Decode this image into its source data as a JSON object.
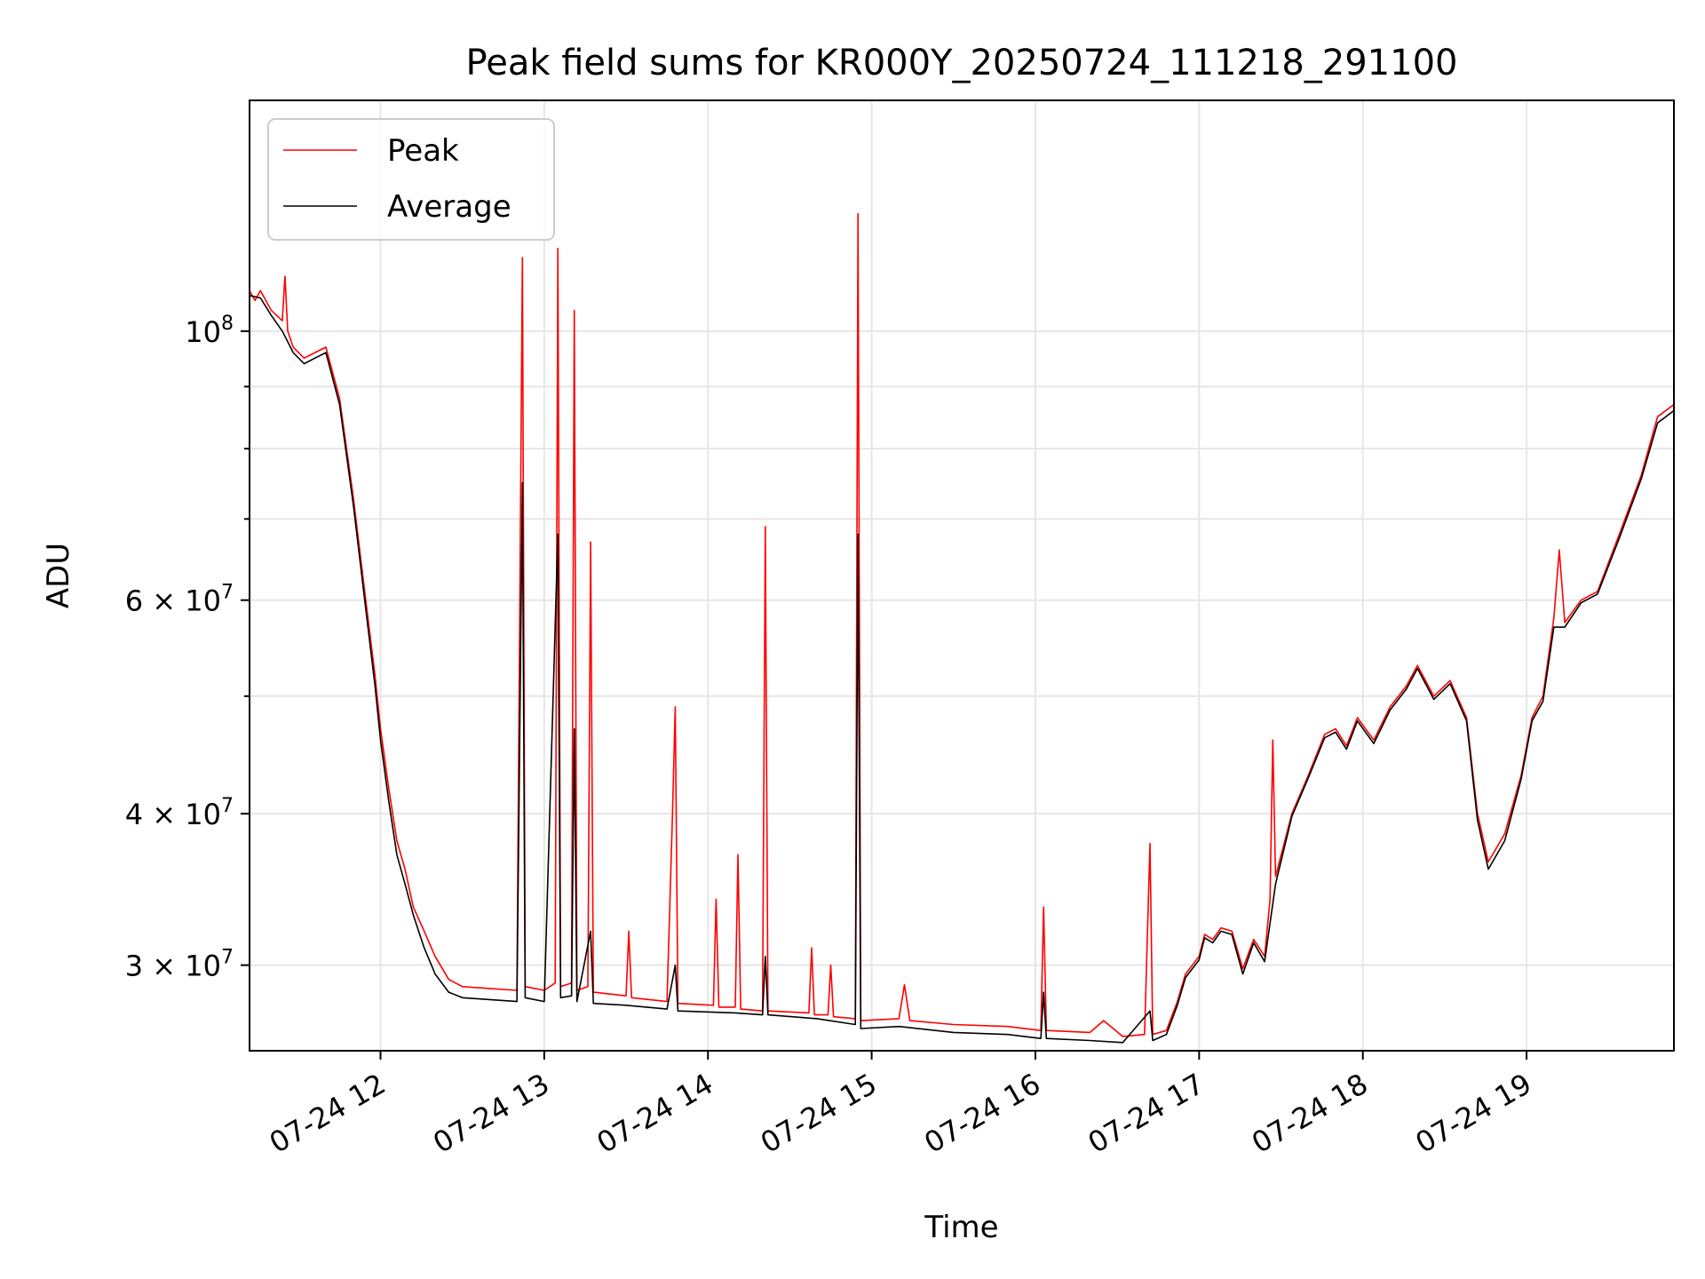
{
  "chart_data": {
    "type": "line",
    "title": "Peak field sums for KR000Y_20250724_111218_291100",
    "xlabel": "Time",
    "ylabel": "ADU",
    "yscale": "log",
    "xlim": [
      "2025-07-24 11:12",
      "2025-07-24 19:54"
    ],
    "ylim": [
      25500000,
      155000000
    ],
    "grid": true,
    "legend_position": "upper left",
    "x_ticks": [
      {
        "value": "2025-07-24 12:00",
        "label": "07-24 12"
      },
      {
        "value": "2025-07-24 13:00",
        "label": "07-24 13"
      },
      {
        "value": "2025-07-24 14:00",
        "label": "07-24 14"
      },
      {
        "value": "2025-07-24 15:00",
        "label": "07-24 15"
      },
      {
        "value": "2025-07-24 16:00",
        "label": "07-24 16"
      },
      {
        "value": "2025-07-24 17:00",
        "label": "07-24 17"
      },
      {
        "value": "2025-07-24 18:00",
        "label": "07-24 18"
      },
      {
        "value": "2025-07-24 19:00",
        "label": "07-24 19"
      }
    ],
    "y_ticks": [
      {
        "value": 30000000,
        "base": "3 × 10",
        "exp": "7"
      },
      {
        "value": 40000000,
        "base": "4 × 10",
        "exp": "7"
      },
      {
        "value": 60000000,
        "base": "6 × 10",
        "exp": "7"
      },
      {
        "value": 100000000,
        "base": "10",
        "exp": "8"
      }
    ],
    "y_minor_ticks": [
      50000000,
      70000000,
      80000000,
      90000000
    ],
    "series": [
      {
        "name": "Peak",
        "color": "#ff0000",
        "points": [
          [
            "2025-07-24 11:12",
            108000000
          ],
          [
            "2025-07-24 11:14",
            106000000
          ],
          [
            "2025-07-24 11:16",
            108000000
          ],
          [
            "2025-07-24 11:20",
            104000000
          ],
          [
            "2025-07-24 11:24",
            102000000
          ],
          [
            "2025-07-24 11:25",
            111000000
          ],
          [
            "2025-07-24 11:26",
            100000000
          ],
          [
            "2025-07-24 11:28",
            97000000
          ],
          [
            "2025-07-24 11:32",
            95000000
          ],
          [
            "2025-07-24 11:36",
            96000000
          ],
          [
            "2025-07-24 11:40",
            97000000
          ],
          [
            "2025-07-24 11:45",
            88000000
          ],
          [
            "2025-07-24 11:50",
            73000000
          ],
          [
            "2025-07-24 11:55",
            59000000
          ],
          [
            "2025-07-24 11:58",
            52000000
          ],
          [
            "2025-07-24 12:00",
            47000000
          ],
          [
            "2025-07-24 12:03",
            42000000
          ],
          [
            "2025-07-24 12:06",
            38000000
          ],
          [
            "2025-07-24 12:09",
            36000000
          ],
          [
            "2025-07-24 12:12",
            33500000
          ],
          [
            "2025-07-24 12:16",
            32000000
          ],
          [
            "2025-07-24 12:20",
            30500000
          ],
          [
            "2025-07-24 12:25",
            29200000
          ],
          [
            "2025-07-24 12:30",
            28800000
          ],
          [
            "2025-07-24 12:40",
            28700000
          ],
          [
            "2025-07-24 12:50",
            28600000
          ],
          [
            "2025-07-24 12:52",
            115000000
          ],
          [
            "2025-07-24 12:53",
            28800000
          ],
          [
            "2025-07-24 13:00",
            28600000
          ],
          [
            "2025-07-24 13:04",
            29000000
          ],
          [
            "2025-07-24 13:05",
            117000000
          ],
          [
            "2025-07-24 13:06",
            28800000
          ],
          [
            "2025-07-24 13:10",
            29000000
          ],
          [
            "2025-07-24 13:11",
            104000000
          ],
          [
            "2025-07-24 13:12",
            28600000
          ],
          [
            "2025-07-24 13:16",
            28800000
          ],
          [
            "2025-07-24 13:17",
            67000000
          ],
          [
            "2025-07-24 13:18",
            28500000
          ],
          [
            "2025-07-24 13:30",
            28300000
          ],
          [
            "2025-07-24 13:31",
            32000000
          ],
          [
            "2025-07-24 13:32",
            28200000
          ],
          [
            "2025-07-24 13:45",
            28000000
          ],
          [
            "2025-07-24 13:47",
            40000000
          ],
          [
            "2025-07-24 13:48",
            49000000
          ],
          [
            "2025-07-24 13:49",
            27900000
          ],
          [
            "2025-07-24 14:02",
            27800000
          ],
          [
            "2025-07-24 14:03",
            34000000
          ],
          [
            "2025-07-24 14:04",
            27700000
          ],
          [
            "2025-07-24 14:10",
            27700000
          ],
          [
            "2025-07-24 14:11",
            37000000
          ],
          [
            "2025-07-24 14:12",
            27600000
          ],
          [
            "2025-07-24 14:20",
            27500000
          ],
          [
            "2025-07-24 14:21",
            69000000
          ],
          [
            "2025-07-24 14:22",
            27500000
          ],
          [
            "2025-07-24 14:37",
            27400000
          ],
          [
            "2025-07-24 14:38",
            31000000
          ],
          [
            "2025-07-24 14:39",
            27300000
          ],
          [
            "2025-07-24 14:44",
            27300000
          ],
          [
            "2025-07-24 14:45",
            30000000
          ],
          [
            "2025-07-24 14:46",
            27200000
          ],
          [
            "2025-07-24 14:54",
            27100000
          ],
          [
            "2025-07-24 14:55",
            125000000
          ],
          [
            "2025-07-24 14:56",
            27000000
          ],
          [
            "2025-07-24 15:10",
            27100000
          ],
          [
            "2025-07-24 15:12",
            28900000
          ],
          [
            "2025-07-24 15:14",
            27000000
          ],
          [
            "2025-07-24 15:30",
            26800000
          ],
          [
            "2025-07-24 15:50",
            26700000
          ],
          [
            "2025-07-24 16:02",
            26500000
          ],
          [
            "2025-07-24 16:03",
            33500000
          ],
          [
            "2025-07-24 16:04",
            26500000
          ],
          [
            "2025-07-24 16:20",
            26400000
          ],
          [
            "2025-07-24 16:25",
            27000000
          ],
          [
            "2025-07-24 16:32",
            26200000
          ],
          [
            "2025-07-24 16:40",
            26300000
          ],
          [
            "2025-07-24 16:42",
            37800000
          ],
          [
            "2025-07-24 16:43",
            26300000
          ],
          [
            "2025-07-24 16:48",
            26500000
          ],
          [
            "2025-07-24 16:52",
            28000000
          ],
          [
            "2025-07-24 16:55",
            29500000
          ],
          [
            "2025-07-24 17:00",
            30500000
          ],
          [
            "2025-07-24 17:02",
            31800000
          ],
          [
            "2025-07-24 17:05",
            31500000
          ],
          [
            "2025-07-24 17:08",
            32200000
          ],
          [
            "2025-07-24 17:12",
            32000000
          ],
          [
            "2025-07-24 17:16",
            29800000
          ],
          [
            "2025-07-24 17:20",
            31500000
          ],
          [
            "2025-07-24 17:24",
            30500000
          ],
          [
            "2025-07-24 17:26",
            34000000
          ],
          [
            "2025-07-24 17:27",
            46000000
          ],
          [
            "2025-07-24 17:28",
            35500000
          ],
          [
            "2025-07-24 17:34",
            40000000
          ],
          [
            "2025-07-24 17:40",
            43000000
          ],
          [
            "2025-07-24 17:46",
            46500000
          ],
          [
            "2025-07-24 17:50",
            47000000
          ],
          [
            "2025-07-24 17:54",
            45500000
          ],
          [
            "2025-07-24 17:58",
            48000000
          ],
          [
            "2025-07-24 18:04",
            46000000
          ],
          [
            "2025-07-24 18:10",
            49000000
          ],
          [
            "2025-07-24 18:16",
            51000000
          ],
          [
            "2025-07-24 18:20",
            53000000
          ],
          [
            "2025-07-24 18:26",
            50000000
          ],
          [
            "2025-07-24 18:32",
            51500000
          ],
          [
            "2025-07-24 18:38",
            48000000
          ],
          [
            "2025-07-24 18:42",
            40000000
          ],
          [
            "2025-07-24 18:46",
            36500000
          ],
          [
            "2025-07-24 18:52",
            38500000
          ],
          [
            "2025-07-24 18:58",
            43000000
          ],
          [
            "2025-07-24 19:02",
            48000000
          ],
          [
            "2025-07-24 19:06",
            50000000
          ],
          [
            "2025-07-24 19:10",
            58000000
          ],
          [
            "2025-07-24 19:12",
            66000000
          ],
          [
            "2025-07-24 19:14",
            57500000
          ],
          [
            "2025-07-24 19:20",
            60000000
          ],
          [
            "2025-07-24 19:26",
            61000000
          ],
          [
            "2025-07-24 19:34",
            68000000
          ],
          [
            "2025-07-24 19:42",
            76000000
          ],
          [
            "2025-07-24 19:48",
            85000000
          ],
          [
            "2025-07-24 19:54",
            87000000
          ]
        ]
      },
      {
        "name": "Average",
        "color": "#000000",
        "points": [
          [
            "2025-07-24 11:12",
            107000000
          ],
          [
            "2025-07-24 11:16",
            106500000
          ],
          [
            "2025-07-24 11:20",
            103000000
          ],
          [
            "2025-07-24 11:24",
            100000000
          ],
          [
            "2025-07-24 11:28",
            96000000
          ],
          [
            "2025-07-24 11:32",
            94000000
          ],
          [
            "2025-07-24 11:36",
            95000000
          ],
          [
            "2025-07-24 11:40",
            96000000
          ],
          [
            "2025-07-24 11:45",
            87000000
          ],
          [
            "2025-07-24 11:50",
            72000000
          ],
          [
            "2025-07-24 11:55",
            58000000
          ],
          [
            "2025-07-24 11:58",
            51000000
          ],
          [
            "2025-07-24 12:00",
            46000000
          ],
          [
            "2025-07-24 12:03",
            41000000
          ],
          [
            "2025-07-24 12:06",
            37000000
          ],
          [
            "2025-07-24 12:09",
            35000000
          ],
          [
            "2025-07-24 12:12",
            33000000
          ],
          [
            "2025-07-24 12:16",
            31000000
          ],
          [
            "2025-07-24 12:20",
            29500000
          ],
          [
            "2025-07-24 12:25",
            28500000
          ],
          [
            "2025-07-24 12:30",
            28200000
          ],
          [
            "2025-07-24 12:40",
            28100000
          ],
          [
            "2025-07-24 12:50",
            28000000
          ],
          [
            "2025-07-24 12:52",
            75000000
          ],
          [
            "2025-07-24 12:53",
            28200000
          ],
          [
            "2025-07-24 13:00",
            28000000
          ],
          [
            "2025-07-24 13:05",
            68000000
          ],
          [
            "2025-07-24 13:06",
            28200000
          ],
          [
            "2025-07-24 13:10",
            28300000
          ],
          [
            "2025-07-24 13:11",
            47000000
          ],
          [
            "2025-07-24 13:12",
            28000000
          ],
          [
            "2025-07-24 13:17",
            32000000
          ],
          [
            "2025-07-24 13:18",
            27900000
          ],
          [
            "2025-07-24 13:30",
            27800000
          ],
          [
            "2025-07-24 13:45",
            27600000
          ],
          [
            "2025-07-24 13:48",
            30000000
          ],
          [
            "2025-07-24 13:49",
            27500000
          ],
          [
            "2025-07-24 14:10",
            27400000
          ],
          [
            "2025-07-24 14:20",
            27300000
          ],
          [
            "2025-07-24 14:21",
            30500000
          ],
          [
            "2025-07-24 14:22",
            27300000
          ],
          [
            "2025-07-24 14:40",
            27100000
          ],
          [
            "2025-07-24 14:54",
            26800000
          ],
          [
            "2025-07-24 14:55",
            68000000
          ],
          [
            "2025-07-24 14:56",
            26600000
          ],
          [
            "2025-07-24 15:10",
            26700000
          ],
          [
            "2025-07-24 15:30",
            26400000
          ],
          [
            "2025-07-24 15:50",
            26300000
          ],
          [
            "2025-07-24 16:02",
            26100000
          ],
          [
            "2025-07-24 16:03",
            28500000
          ],
          [
            "2025-07-24 16:04",
            26100000
          ],
          [
            "2025-07-24 16:20",
            26000000
          ],
          [
            "2025-07-24 16:32",
            25900000
          ],
          [
            "2025-07-24 16:42",
            27500000
          ],
          [
            "2025-07-24 16:43",
            26000000
          ],
          [
            "2025-07-24 16:48",
            26300000
          ],
          [
            "2025-07-24 16:52",
            27800000
          ],
          [
            "2025-07-24 16:55",
            29300000
          ],
          [
            "2025-07-24 17:00",
            30300000
          ],
          [
            "2025-07-24 17:02",
            31600000
          ],
          [
            "2025-07-24 17:05",
            31300000
          ],
          [
            "2025-07-24 17:08",
            32000000
          ],
          [
            "2025-07-24 17:12",
            31800000
          ],
          [
            "2025-07-24 17:16",
            29500000
          ],
          [
            "2025-07-24 17:20",
            31300000
          ],
          [
            "2025-07-24 17:24",
            30200000
          ],
          [
            "2025-07-24 17:28",
            35000000
          ],
          [
            "2025-07-24 17:34",
            39800000
          ],
          [
            "2025-07-24 17:40",
            42800000
          ],
          [
            "2025-07-24 17:46",
            46200000
          ],
          [
            "2025-07-24 17:50",
            46700000
          ],
          [
            "2025-07-24 17:54",
            45200000
          ],
          [
            "2025-07-24 17:58",
            47700000
          ],
          [
            "2025-07-24 18:04",
            45700000
          ],
          [
            "2025-07-24 18:10",
            48700000
          ],
          [
            "2025-07-24 18:16",
            50700000
          ],
          [
            "2025-07-24 18:20",
            52700000
          ],
          [
            "2025-07-24 18:26",
            49700000
          ],
          [
            "2025-07-24 18:32",
            51200000
          ],
          [
            "2025-07-24 18:38",
            47700000
          ],
          [
            "2025-07-24 18:42",
            39500000
          ],
          [
            "2025-07-24 18:46",
            36000000
          ],
          [
            "2025-07-24 18:52",
            38000000
          ],
          [
            "2025-07-24 18:58",
            42700000
          ],
          [
            "2025-07-24 19:02",
            47700000
          ],
          [
            "2025-07-24 19:06",
            49500000
          ],
          [
            "2025-07-24 19:10",
            57000000
          ],
          [
            "2025-07-24 19:14",
            57000000
          ],
          [
            "2025-07-24 19:20",
            59700000
          ],
          [
            "2025-07-24 19:26",
            60700000
          ],
          [
            "2025-07-24 19:34",
            67500000
          ],
          [
            "2025-07-24 19:42",
            75500000
          ],
          [
            "2025-07-24 19:48",
            84000000
          ],
          [
            "2025-07-24 19:54",
            86000000
          ]
        ]
      }
    ]
  }
}
